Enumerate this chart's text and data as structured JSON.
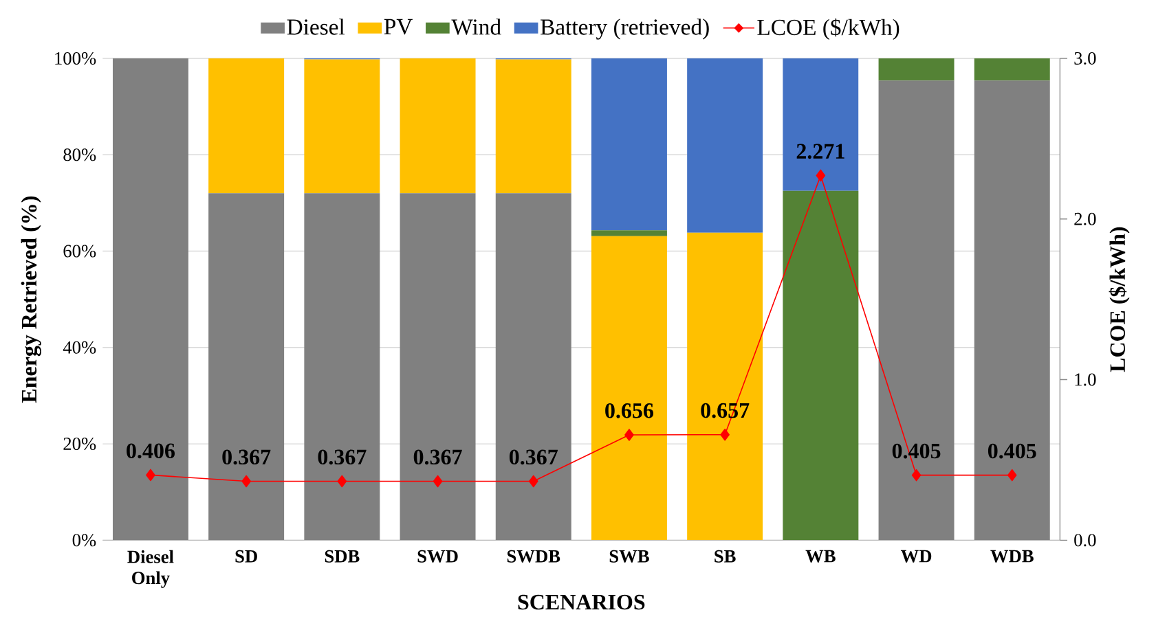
{
  "chart_data": {
    "type": "bar",
    "stacked": true,
    "xlabel": "SCENARIOS",
    "ylabel": "Energy Retrieved (%)",
    "y2label": "LCOE  ($/kWh)",
    "categories": [
      "Diesel Only",
      "SD",
      "SDB",
      "SWD",
      "SWDB",
      "SWB",
      "SB",
      "WB",
      "WD",
      "WDB"
    ],
    "series": [
      {
        "name": "Diesel",
        "color": "#808080",
        "values": [
          100,
          72,
          72,
          72,
          72,
          0,
          0,
          0,
          95.4,
          95.4
        ]
      },
      {
        "name": "PV",
        "color": "#ffc000",
        "values": [
          0,
          28,
          27.8,
          28,
          27.8,
          63.1,
          63.8,
          0,
          0,
          0
        ]
      },
      {
        "name": "Wind",
        "color": "#548235",
        "values": [
          0,
          0,
          0,
          0,
          0,
          1.2,
          0,
          72.5,
          4.6,
          4.6
        ]
      },
      {
        "name": "Battery (retrieved)",
        "color": "#4472c4",
        "values": [
          0,
          0,
          0.2,
          0,
          0.2,
          35.7,
          36.2,
          27.5,
          0,
          0
        ]
      },
      {
        "name": "LCOE ($/kWh)",
        "type": "line",
        "axis": "y2",
        "color": "#ff0000",
        "marker": "diamond",
        "line_style": "solid",
        "values": [
          0.406,
          0.367,
          0.367,
          0.367,
          0.367,
          0.656,
          0.657,
          2.271,
          0.405,
          0.405
        ],
        "value_labels": [
          "0.406",
          "0.367",
          "0.367",
          "0.367",
          "0.367",
          "0.656",
          "0.657",
          "2.271",
          "0.405",
          "0.405"
        ]
      }
    ],
    "ylim": [
      0,
      100
    ],
    "yticks": [
      {
        "value": 0,
        "label": "0%"
      },
      {
        "value": 20,
        "label": "20%"
      },
      {
        "value": 40,
        "label": "40%"
      },
      {
        "value": 60,
        "label": "60%"
      },
      {
        "value": 80,
        "label": "80%"
      },
      {
        "value": 100,
        "label": "100%"
      }
    ],
    "y2lim": [
      0,
      3
    ],
    "y2ticks": [
      {
        "value": 0,
        "label": "0.0"
      },
      {
        "value": 1,
        "label": "1.0"
      },
      {
        "value": 2,
        "label": "2.0"
      },
      {
        "value": 3,
        "label": "3.0"
      }
    ],
    "grid": "y",
    "legend": "top"
  }
}
